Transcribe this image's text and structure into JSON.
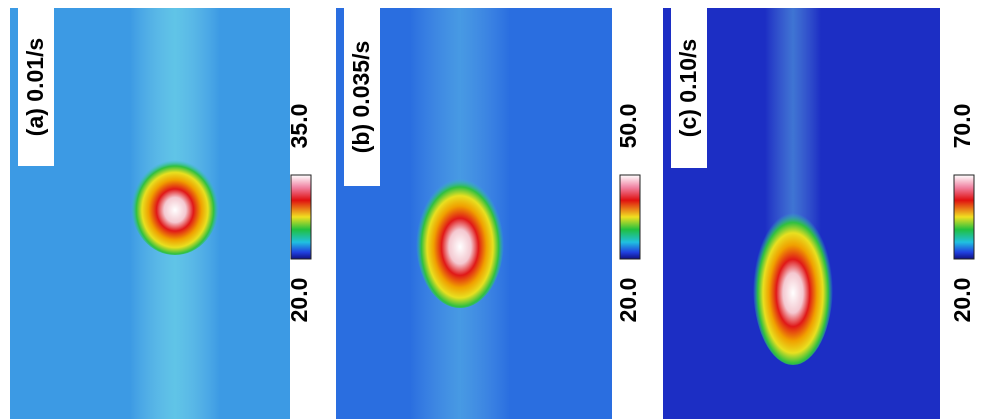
{
  "panels": [
    {
      "label": "(a) 0.01/s",
      "colorbar_max": "35.0",
      "colorbar_min": "20.0"
    },
    {
      "label": "(b) 0.035/s",
      "colorbar_max": "50.0",
      "colorbar_min": "20.0"
    },
    {
      "label": "(c) 0.10/s",
      "colorbar_max": "70.0",
      "colorbar_min": "20.0"
    }
  ]
}
